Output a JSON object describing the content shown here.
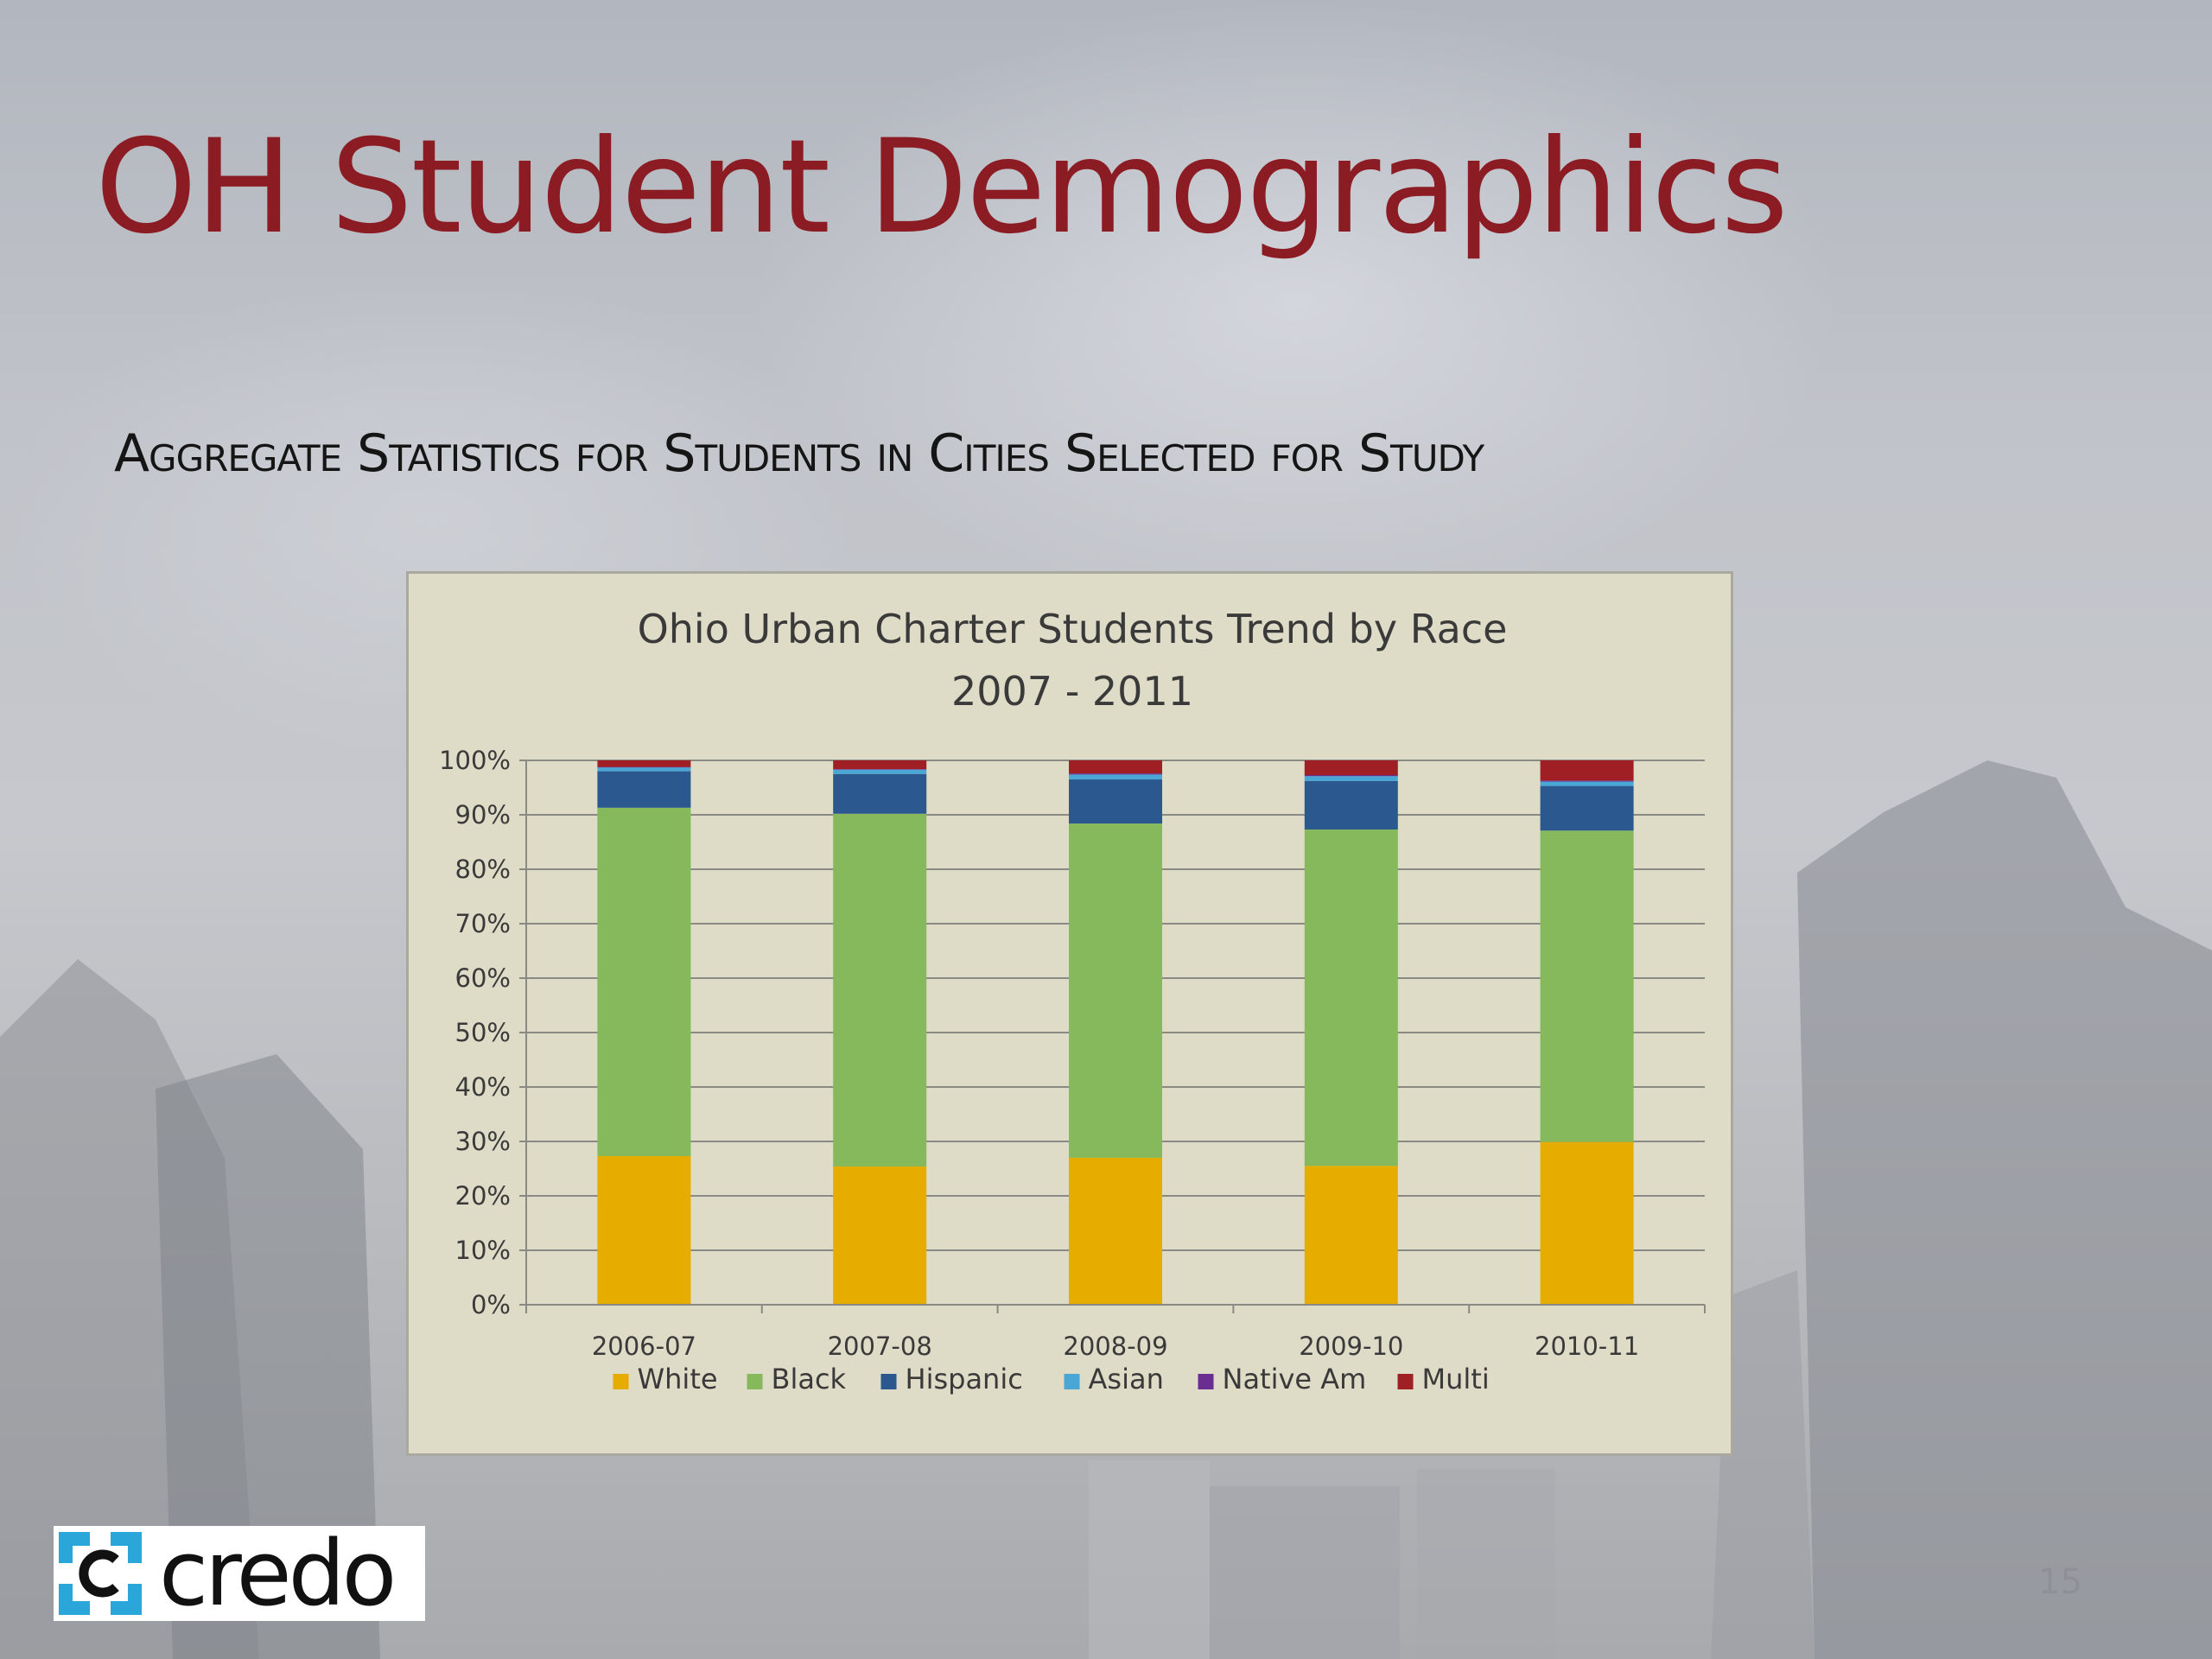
{
  "slide": {
    "title": "OH Student Demographics",
    "subtitle": "Aggregate Statistics for Students in Cities Selected for Study",
    "page_number": "15"
  },
  "logo": {
    "text": "credo",
    "icon": "credo-bracket-c-icon"
  },
  "colors": {
    "title": "#8c1c24",
    "chart_background": "#dedbc6",
    "White": "#e6ac00",
    "Black": "#86b85c",
    "Hispanic": "#2a588f",
    "Asian": "#4aa6d4",
    "Native Am": "#6a2d91",
    "Multi": "#a01f24"
  },
  "chart_data": {
    "type": "bar",
    "stacked": true,
    "title_lines": [
      "Ohio Urban Charter Students Trend by Race",
      "2007 - 2011"
    ],
    "categories": [
      "2006-07",
      "2007-08",
      "2008-09",
      "2009-10",
      "2010-11"
    ],
    "series": [
      {
        "name": "White",
        "values": [
          27.3,
          25.4,
          27.0,
          25.5,
          29.9
        ]
      },
      {
        "name": "Black",
        "values": [
          64.0,
          64.8,
          61.4,
          61.8,
          57.2
        ]
      },
      {
        "name": "Hispanic",
        "values": [
          6.7,
          7.3,
          8.1,
          8.9,
          8.2
        ]
      },
      {
        "name": "Asian",
        "values": [
          0.7,
          0.8,
          0.9,
          0.9,
          0.8
        ]
      },
      {
        "name": "Native Am",
        "values": [
          0.1,
          0.1,
          0.2,
          0.2,
          0.2
        ]
      },
      {
        "name": "Multi",
        "values": [
          1.2,
          1.6,
          2.4,
          2.7,
          3.7
        ]
      }
    ],
    "ylim": [
      0,
      100
    ],
    "yticks": [
      "0%",
      "10%",
      "20%",
      "30%",
      "40%",
      "50%",
      "60%",
      "70%",
      "80%",
      "90%",
      "100%"
    ],
    "grid": true,
    "legend": "bottom",
    "xlabel": "",
    "ylabel": ""
  }
}
